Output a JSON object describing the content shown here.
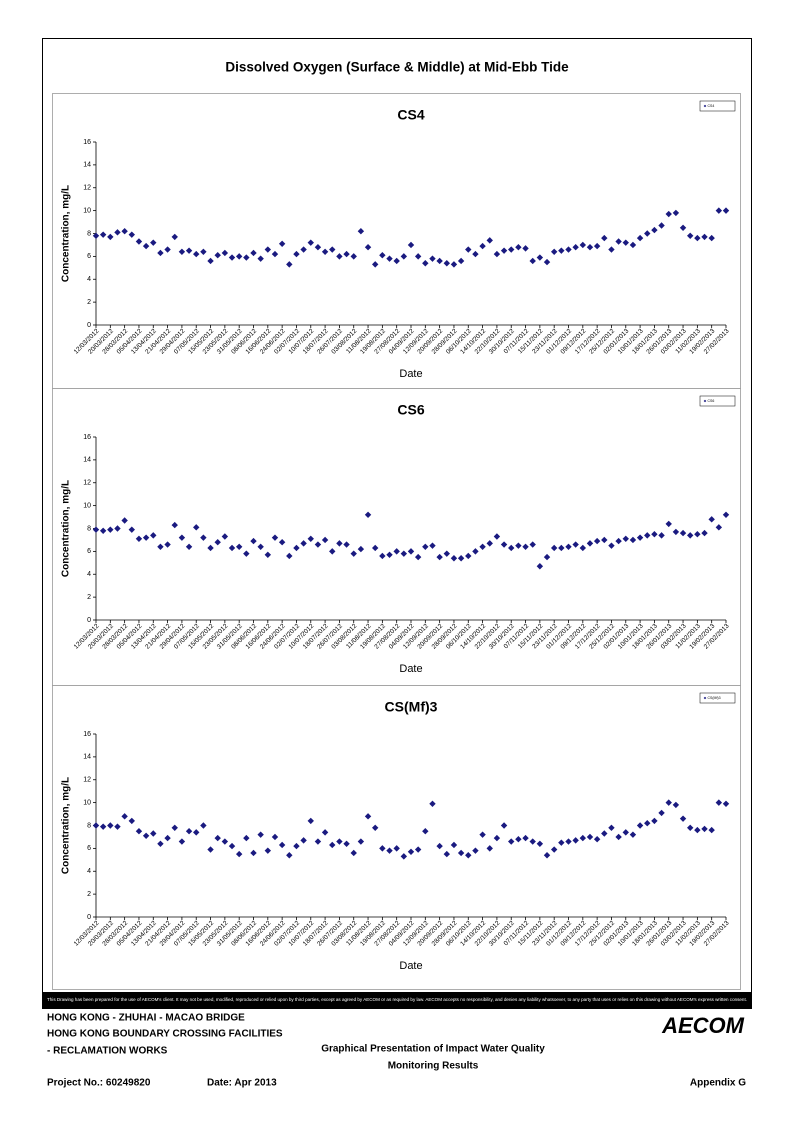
{
  "title": "Dissolved Oxygen (Surface & Middle) at Mid-Ebb Tide",
  "chart_data": [
    {
      "type": "scatter",
      "title": "CS4",
      "xlabel": "Date",
      "ylabel": "Concentration, mg/L",
      "xlim": [
        "12/03/2012",
        "27/02/2013"
      ],
      "xticks": [
        "12/03/2012",
        "20/03/2012",
        "28/03/2012",
        "05/04/2012",
        "13/04/2012",
        "21/04/2012",
        "29/04/2012",
        "07/05/2012",
        "15/05/2012",
        "23/05/2012",
        "31/05/2012",
        "08/06/2012",
        "16/06/2012",
        "24/06/2012",
        "02/07/2012",
        "10/07/2012",
        "18/07/2012",
        "26/07/2012",
        "03/08/2012",
        "11/08/2012",
        "19/08/2012",
        "27/08/2012",
        "04/09/2012",
        "12/09/2012",
        "20/09/2012",
        "28/09/2012",
        "06/10/2012",
        "14/10/2012",
        "22/10/2012",
        "30/10/2012",
        "07/11/2012",
        "15/11/2012",
        "23/11/2012",
        "01/12/2012",
        "09/12/2012",
        "17/12/2012",
        "25/12/2012",
        "02/01/2013",
        "10/01/2013",
        "18/01/2013",
        "26/01/2013",
        "03/02/2013",
        "11/02/2013",
        "19/02/2013",
        "27/02/2013"
      ],
      "ylim": [
        0,
        16
      ],
      "yticks": [
        0,
        2,
        4,
        6,
        8,
        10,
        12,
        14,
        16
      ],
      "legend": "upper right",
      "x": [
        "12/03/2012",
        "16/03/2012",
        "20/03/2012",
        "24/03/2012",
        "28/03/2012",
        "01/04/2012",
        "05/04/2012",
        "09/04/2012",
        "13/04/2012",
        "17/04/2012",
        "21/04/2012",
        "25/04/2012",
        "29/04/2012",
        "03/05/2012",
        "07/05/2012",
        "11/05/2012",
        "15/05/2012",
        "19/05/2012",
        "23/05/2012",
        "27/05/2012",
        "31/05/2012",
        "04/06/2012",
        "08/06/2012",
        "12/06/2012",
        "16/06/2012",
        "20/06/2012",
        "24/06/2012",
        "28/06/2012",
        "02/07/2012",
        "06/07/2012",
        "10/07/2012",
        "14/07/2012",
        "18/07/2012",
        "22/07/2012",
        "26/07/2012",
        "30/07/2012",
        "03/08/2012",
        "07/08/2012",
        "11/08/2012",
        "15/08/2012",
        "19/08/2012",
        "23/08/2012",
        "27/08/2012",
        "31/08/2012",
        "04/09/2012",
        "08/09/2012",
        "12/09/2012",
        "16/09/2012",
        "20/09/2012",
        "24/09/2012",
        "28/09/2012",
        "02/10/2012",
        "06/10/2012",
        "10/10/2012",
        "14/10/2012",
        "18/10/2012",
        "22/10/2012",
        "26/10/2012",
        "30/10/2012",
        "03/11/2012",
        "07/11/2012",
        "11/11/2012",
        "15/11/2012",
        "19/11/2012",
        "23/11/2012",
        "27/11/2012",
        "01/12/2012",
        "05/12/2012",
        "09/12/2012",
        "13/12/2012",
        "17/12/2012",
        "21/12/2012",
        "25/12/2012",
        "29/12/2012",
        "02/01/2013",
        "06/01/2013",
        "10/01/2013",
        "14/01/2013",
        "18/01/2013",
        "22/01/2013",
        "26/01/2013",
        "30/01/2013",
        "03/02/2013",
        "07/02/2013",
        "11/02/2013",
        "15/02/2013",
        "19/02/2013",
        "23/02/2013",
        "27/02/2013"
      ],
      "series": [
        {
          "name": "CS4",
          "color": "#1a1a80",
          "values": [
            7.8,
            7.9,
            7.7,
            8.1,
            8.2,
            7.9,
            7.3,
            6.9,
            7.2,
            6.3,
            6.6,
            7.7,
            6.4,
            6.5,
            6.2,
            6.4,
            5.6,
            6.1,
            6.3,
            5.9,
            6.0,
            5.9,
            6.3,
            5.8,
            6.6,
            6.2,
            7.1,
            5.3,
            6.2,
            6.6,
            7.2,
            6.8,
            6.4,
            6.6,
            6.0,
            6.2,
            6.0,
            8.2,
            6.8,
            5.3,
            6.1,
            5.8,
            5.6,
            6.0,
            7.0,
            6.0,
            5.4,
            5.8,
            5.6,
            5.4,
            5.3,
            5.6,
            6.6,
            6.2,
            6.9,
            7.4,
            6.2,
            6.5,
            6.6,
            6.8,
            6.7,
            5.6,
            5.9,
            5.5,
            6.4,
            6.5,
            6.6,
            6.8,
            7.0,
            6.8,
            6.9,
            7.6,
            6.6,
            7.3,
            7.2,
            7.0,
            7.6,
            8.0,
            8.3,
            8.7,
            9.7,
            9.8,
            8.5,
            7.8,
            7.6,
            7.7,
            7.6,
            10.0,
            10.0
          ]
        }
      ]
    },
    {
      "type": "scatter",
      "title": "CS6",
      "xlabel": "Date",
      "ylabel": "Concentration, mg/L",
      "xlim": [
        "12/03/2012",
        "27/02/2013"
      ],
      "xticks": [
        "12/03/2012",
        "20/03/2012",
        "28/03/2012",
        "05/04/2012",
        "13/04/2012",
        "21/04/2012",
        "29/04/2012",
        "07/05/2012",
        "15/05/2012",
        "23/05/2012",
        "31/05/2012",
        "08/06/2012",
        "16/06/2012",
        "24/06/2012",
        "02/07/2012",
        "10/07/2012",
        "18/07/2012",
        "26/07/2012",
        "03/08/2012",
        "11/08/2012",
        "19/08/2012",
        "27/08/2012",
        "04/09/2012",
        "12/09/2012",
        "20/09/2012",
        "28/09/2012",
        "06/10/2012",
        "14/10/2012",
        "22/10/2012",
        "30/10/2012",
        "07/11/2012",
        "15/11/2012",
        "23/11/2012",
        "01/12/2012",
        "09/12/2012",
        "17/12/2012",
        "25/12/2012",
        "02/01/2013",
        "10/01/2013",
        "18/01/2013",
        "26/01/2013",
        "03/02/2013",
        "11/02/2013",
        "19/02/2013",
        "27/02/2013"
      ],
      "ylim": [
        0,
        16
      ],
      "yticks": [
        0,
        2,
        4,
        6,
        8,
        10,
        12,
        14,
        16
      ],
      "legend": "upper right",
      "x": [
        "12/03/2012",
        "16/03/2012",
        "20/03/2012",
        "24/03/2012",
        "28/03/2012",
        "01/04/2012",
        "05/04/2012",
        "09/04/2012",
        "13/04/2012",
        "17/04/2012",
        "21/04/2012",
        "25/04/2012",
        "29/04/2012",
        "03/05/2012",
        "07/05/2012",
        "11/05/2012",
        "15/05/2012",
        "19/05/2012",
        "23/05/2012",
        "27/05/2012",
        "31/05/2012",
        "04/06/2012",
        "08/06/2012",
        "12/06/2012",
        "16/06/2012",
        "20/06/2012",
        "24/06/2012",
        "28/06/2012",
        "02/07/2012",
        "06/07/2012",
        "10/07/2012",
        "14/07/2012",
        "18/07/2012",
        "22/07/2012",
        "26/07/2012",
        "30/07/2012",
        "03/08/2012",
        "07/08/2012",
        "11/08/2012",
        "15/08/2012",
        "19/08/2012",
        "23/08/2012",
        "27/08/2012",
        "31/08/2012",
        "04/09/2012",
        "08/09/2012",
        "12/09/2012",
        "16/09/2012",
        "20/09/2012",
        "24/09/2012",
        "28/09/2012",
        "02/10/2012",
        "06/10/2012",
        "10/10/2012",
        "14/10/2012",
        "18/10/2012",
        "22/10/2012",
        "26/10/2012",
        "30/10/2012",
        "03/11/2012",
        "07/11/2012",
        "11/11/2012",
        "15/11/2012",
        "19/11/2012",
        "23/11/2012",
        "27/11/2012",
        "01/12/2012",
        "05/12/2012",
        "09/12/2012",
        "13/12/2012",
        "17/12/2012",
        "21/12/2012",
        "25/12/2012",
        "29/12/2012",
        "02/01/2013",
        "06/01/2013",
        "10/01/2013",
        "14/01/2013",
        "18/01/2013",
        "22/01/2013",
        "26/01/2013",
        "30/01/2013",
        "03/02/2013",
        "07/02/2013",
        "11/02/2013",
        "15/02/2013",
        "19/02/2013",
        "23/02/2013",
        "27/02/2013"
      ],
      "series": [
        {
          "name": "CS6",
          "color": "#1a1a80",
          "values": [
            7.9,
            7.8,
            7.9,
            8.0,
            8.7,
            7.9,
            7.1,
            7.2,
            7.4,
            6.4,
            6.6,
            8.3,
            7.2,
            6.4,
            8.1,
            7.2,
            6.3,
            6.8,
            7.3,
            6.3,
            6.4,
            5.8,
            6.9,
            6.4,
            5.7,
            7.2,
            6.8,
            5.6,
            6.3,
            6.7,
            7.1,
            6.6,
            7.0,
            6.0,
            6.7,
            6.6,
            5.8,
            6.2,
            9.2,
            6.3,
            5.6,
            5.7,
            6.0,
            5.8,
            6.0,
            5.5,
            6.4,
            6.5,
            5.5,
            5.8,
            5.4,
            5.4,
            5.6,
            6.0,
            6.4,
            6.7,
            7.3,
            6.6,
            6.3,
            6.5,
            6.4,
            6.6,
            4.7,
            5.5,
            6.3,
            6.3,
            6.4,
            6.6,
            6.3,
            6.7,
            6.9,
            7.0,
            6.5,
            6.9,
            7.1,
            7.0,
            7.2,
            7.4,
            7.5,
            7.4,
            8.4,
            7.7,
            7.6,
            7.4,
            7.5,
            7.6,
            8.8,
            8.1,
            9.2
          ]
        }
      ]
    },
    {
      "type": "scatter",
      "title": "CS(Mf)3",
      "xlabel": "Date",
      "ylabel": "Concentration, mg/L",
      "xlim": [
        "12/03/2012",
        "27/02/2013"
      ],
      "xticks": [
        "12/03/2012",
        "20/03/2012",
        "28/03/2012",
        "05/04/2012",
        "13/04/2012",
        "21/04/2012",
        "29/04/2012",
        "07/05/2012",
        "15/05/2012",
        "23/05/2012",
        "31/05/2012",
        "08/06/2012",
        "16/06/2012",
        "24/06/2012",
        "02/07/2012",
        "10/07/2012",
        "18/07/2012",
        "26/07/2012",
        "03/08/2012",
        "11/08/2012",
        "19/08/2012",
        "27/08/2012",
        "04/09/2012",
        "12/09/2012",
        "20/09/2012",
        "28/09/2012",
        "06/10/2012",
        "14/10/2012",
        "22/10/2012",
        "30/10/2012",
        "07/11/2012",
        "15/11/2012",
        "23/11/2012",
        "01/12/2012",
        "09/12/2012",
        "17/12/2012",
        "25/12/2012",
        "02/01/2013",
        "10/01/2013",
        "18/01/2013",
        "26/01/2013",
        "03/02/2013",
        "11/02/2013",
        "19/02/2013",
        "27/02/2013"
      ],
      "ylim": [
        0,
        16
      ],
      "yticks": [
        0,
        2,
        4,
        6,
        8,
        10,
        12,
        14,
        16
      ],
      "legend": "upper right",
      "x": [
        "12/03/2012",
        "16/03/2012",
        "20/03/2012",
        "24/03/2012",
        "28/03/2012",
        "01/04/2012",
        "05/04/2012",
        "09/04/2012",
        "13/04/2012",
        "17/04/2012",
        "21/04/2012",
        "25/04/2012",
        "29/04/2012",
        "03/05/2012",
        "07/05/2012",
        "11/05/2012",
        "15/05/2012",
        "19/05/2012",
        "23/05/2012",
        "27/05/2012",
        "31/05/2012",
        "04/06/2012",
        "08/06/2012",
        "12/06/2012",
        "16/06/2012",
        "20/06/2012",
        "24/06/2012",
        "28/06/2012",
        "02/07/2012",
        "06/07/2012",
        "10/07/2012",
        "14/07/2012",
        "18/07/2012",
        "22/07/2012",
        "26/07/2012",
        "30/07/2012",
        "03/08/2012",
        "07/08/2012",
        "11/08/2012",
        "15/08/2012",
        "19/08/2012",
        "23/08/2012",
        "27/08/2012",
        "31/08/2012",
        "04/09/2012",
        "08/09/2012",
        "12/09/2012",
        "16/09/2012",
        "20/09/2012",
        "24/09/2012",
        "28/09/2012",
        "02/10/2012",
        "06/10/2012",
        "10/10/2012",
        "14/10/2012",
        "18/10/2012",
        "22/10/2012",
        "26/10/2012",
        "30/10/2012",
        "03/11/2012",
        "07/11/2012",
        "11/11/2012",
        "15/11/2012",
        "19/11/2012",
        "23/11/2012",
        "27/11/2012",
        "01/12/2012",
        "05/12/2012",
        "09/12/2012",
        "13/12/2012",
        "17/12/2012",
        "21/12/2012",
        "25/12/2012",
        "29/12/2012",
        "02/01/2013",
        "06/01/2013",
        "10/01/2013",
        "14/01/2013",
        "18/01/2013",
        "22/01/2013",
        "26/01/2013",
        "30/01/2013",
        "03/02/2013",
        "07/02/2013",
        "11/02/2013",
        "15/02/2013",
        "19/02/2013",
        "23/02/2013",
        "27/02/2013"
      ],
      "series": [
        {
          "name": "CS(Mf)3",
          "color": "#1a1a80",
          "values": [
            8.0,
            7.9,
            8.0,
            7.9,
            8.8,
            8.4,
            7.5,
            7.1,
            7.3,
            6.4,
            6.9,
            7.8,
            6.6,
            7.5,
            7.4,
            8.0,
            5.9,
            6.9,
            6.6,
            6.2,
            5.5,
            6.9,
            5.6,
            7.2,
            5.8,
            7.0,
            6.3,
            5.4,
            6.2,
            6.7,
            8.4,
            6.6,
            7.4,
            6.3,
            6.6,
            6.4,
            5.6,
            6.6,
            8.8,
            7.8,
            6.0,
            5.8,
            6.0,
            5.3,
            5.7,
            5.9,
            7.5,
            9.9,
            6.2,
            5.5,
            6.3,
            5.6,
            5.4,
            5.8,
            7.2,
            6.0,
            6.9,
            8.0,
            6.6,
            6.8,
            6.9,
            6.6,
            6.4,
            5.4,
            5.9,
            6.5,
            6.6,
            6.7,
            6.9,
            7.0,
            6.8,
            7.3,
            7.8,
            7.0,
            7.4,
            7.2,
            8.0,
            8.2,
            8.4,
            9.1,
            10.0,
            9.8,
            8.6,
            7.8,
            7.6,
            7.7,
            7.6,
            10.0,
            9.9
          ]
        }
      ]
    }
  ],
  "disclaimer": "This Drawing has been prepared for the use of AECOM's client. It may not be used, modified, reproduced or relied upon by third parties, except as agreed by AECOM or as required by law. AECOM accepts no responsibility, and denies any liability whatsoever, to any party that uses or relies on this drawing without AECOM's express written consent.",
  "footer": {
    "project_lines": [
      "HONG KONG - ZHUHAI - MACAO BRIDGE",
      "HONG KONG BOUNDARY CROSSING FACILITIES",
      "- RECLAMATION WORKS"
    ],
    "logo": "AECOM",
    "heading_lines": [
      "Graphical Presentation of Impact Water Quality",
      "Monitoring Results"
    ],
    "project_no": "Project No.: 60249820",
    "date": "Date: Apr 2013",
    "appendix": "Appendix G"
  }
}
